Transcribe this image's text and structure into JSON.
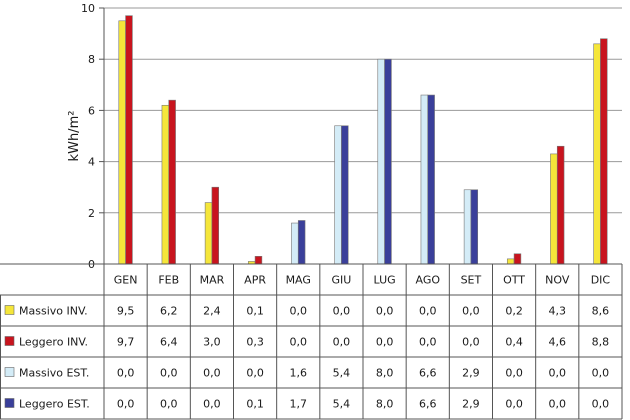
{
  "chart_data": {
    "type": "bar",
    "ylabel": "kWh/m²",
    "ylim": [
      0,
      10
    ],
    "yticks": [
      0,
      2,
      4,
      6,
      8,
      10
    ],
    "grid": true,
    "legend_placement": "data-table-left",
    "categories": [
      "GEN",
      "FEB",
      "MAR",
      "APR",
      "MAG",
      "GIU",
      "LUG",
      "AGO",
      "SET",
      "OTT",
      "NOV",
      "DIC"
    ],
    "series": [
      {
        "name": "Massivo INV.",
        "color": "#f5e63a",
        "values": [
          9.5,
          6.2,
          2.4,
          0.1,
          0.0,
          0.0,
          0.0,
          0.0,
          0.0,
          0.2,
          4.3,
          8.6
        ],
        "labels": [
          "9,5",
          "6,2",
          "2,4",
          "0,1",
          "0,0",
          "0,0",
          "0,0",
          "0,0",
          "0,0",
          "0,2",
          "4,3",
          "8,6"
        ]
      },
      {
        "name": "Leggero INV.",
        "color": "#c8141e",
        "values": [
          9.7,
          6.4,
          3.0,
          0.3,
          0.0,
          0.0,
          0.0,
          0.0,
          0.0,
          0.4,
          4.6,
          8.8
        ],
        "labels": [
          "9,7",
          "6,4",
          "3,0",
          "0,3",
          "0,0",
          "0,0",
          "0,0",
          "0,0",
          "0,0",
          "0,4",
          "4,6",
          "8,8"
        ]
      },
      {
        "name": "Massivo EST.",
        "color": "#d4ecf7",
        "values": [
          0.0,
          0.0,
          0.0,
          0.0,
          1.6,
          5.4,
          8.0,
          6.6,
          2.9,
          0.0,
          0.0,
          0.0
        ],
        "labels": [
          "0,0",
          "0,0",
          "0,0",
          "0,0",
          "1,6",
          "5,4",
          "8,0",
          "6,6",
          "2,9",
          "0,0",
          "0,0",
          "0,0"
        ]
      },
      {
        "name": "Leggero EST.",
        "color": "#3a3f9a",
        "values": [
          0.0,
          0.0,
          0.0,
          0.1,
          1.7,
          5.4,
          8.0,
          6.6,
          2.9,
          0.0,
          0.0,
          0.0
        ],
        "labels": [
          "0,0",
          "0,0",
          "0,0",
          "0,1",
          "1,7",
          "5,4",
          "8,0",
          "6,6",
          "2,9",
          "0,0",
          "0,0",
          "0,0"
        ]
      }
    ]
  }
}
